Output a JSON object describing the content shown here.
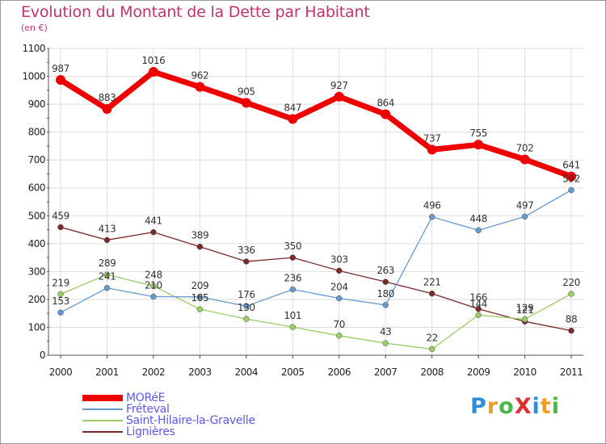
{
  "title": "Evolution du Montant de la Dette par Habitant",
  "subtitle": "(en €)",
  "logo": {
    "text": "ProXiti",
    "letters": [
      {
        "ch": "P",
        "color": "#2e8fd8"
      },
      {
        "ch": "r",
        "color": "#f0a020"
      },
      {
        "ch": "o",
        "color": "#49b848"
      },
      {
        "ch": "X",
        "color": "#e03030"
      },
      {
        "ch": "i",
        "color": "#2e8fd8"
      },
      {
        "ch": "t",
        "color": "#f0a020"
      },
      {
        "ch": "i",
        "color": "#49b848"
      }
    ]
  },
  "chart_data": {
    "type": "line",
    "title": "Evolution du Montant de la Dette par Habitant",
    "subtitle": "(en €)",
    "ylim": [
      0,
      1100
    ],
    "yticks": [
      0,
      100,
      200,
      300,
      400,
      500,
      600,
      700,
      800,
      900,
      1000,
      1100
    ],
    "grid": true,
    "legend_position": "bottom-left",
    "x": [
      "2000",
      "2001",
      "2002",
      "2003",
      "2004",
      "2005",
      "2006",
      "2007",
      "2008",
      "2009",
      "2010",
      "2011"
    ],
    "series": [
      {
        "name": "MORéE",
        "color": "#ee0000",
        "values": [
          987,
          883,
          1016,
          962,
          905,
          847,
          927,
          864,
          737,
          755,
          702,
          641
        ]
      },
      {
        "name": "Fréteval",
        "color": "#6699cc",
        "values": [
          153,
          241,
          210,
          209,
          176,
          236,
          204,
          180,
          496,
          448,
          497,
          592
        ]
      },
      {
        "name": "Saint-Hilaire-la-Gravelle",
        "color": "#99cc66",
        "values": [
          219,
          289,
          248,
          165,
          130,
          101,
          70,
          43,
          22,
          144,
          129,
          220
        ]
      },
      {
        "name": "Lignières",
        "color": "#7a2a2a",
        "values": [
          459,
          413,
          441,
          389,
          336,
          350,
          303,
          263,
          221,
          166,
          121,
          88
        ]
      }
    ]
  }
}
